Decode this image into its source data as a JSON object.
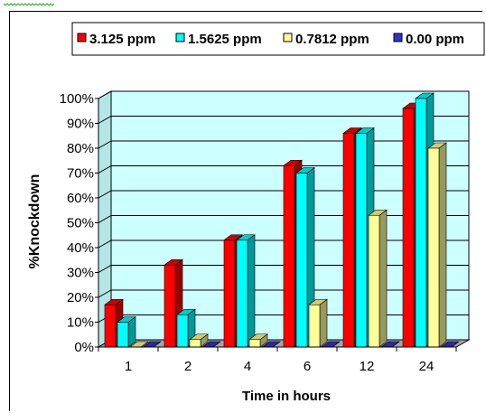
{
  "chart_data": {
    "type": "bar",
    "categories": [
      "1",
      "2",
      "4",
      "6",
      "12",
      "24"
    ],
    "series": [
      {
        "name": "3.125 ppm",
        "color": "#ff0000",
        "values": [
          17,
          33,
          43,
          73,
          86,
          96
        ]
      },
      {
        "name": "1.5625 ppm",
        "color": "#00ffff",
        "values": [
          10,
          13,
          43,
          70,
          86,
          100
        ]
      },
      {
        "name": "0.7812 ppm",
        "color": "#ffff99",
        "values": [
          0,
          3,
          3,
          17,
          53,
          80
        ]
      },
      {
        "name": "0.00 ppm",
        "color": "#3333cc",
        "values": [
          0,
          0,
          0,
          0,
          0,
          0
        ]
      }
    ],
    "yticks": [
      "0%",
      "10%",
      "20%",
      "30%",
      "40%",
      "50%",
      "60%",
      "70%",
      "80%",
      "90%",
      "100%"
    ],
    "ylim": [
      0,
      100
    ],
    "xlabel": "Time in hours",
    "ylabel": "%Knockdown",
    "legend_position": "top",
    "plot_background": "#ccffff",
    "grid": true
  }
}
